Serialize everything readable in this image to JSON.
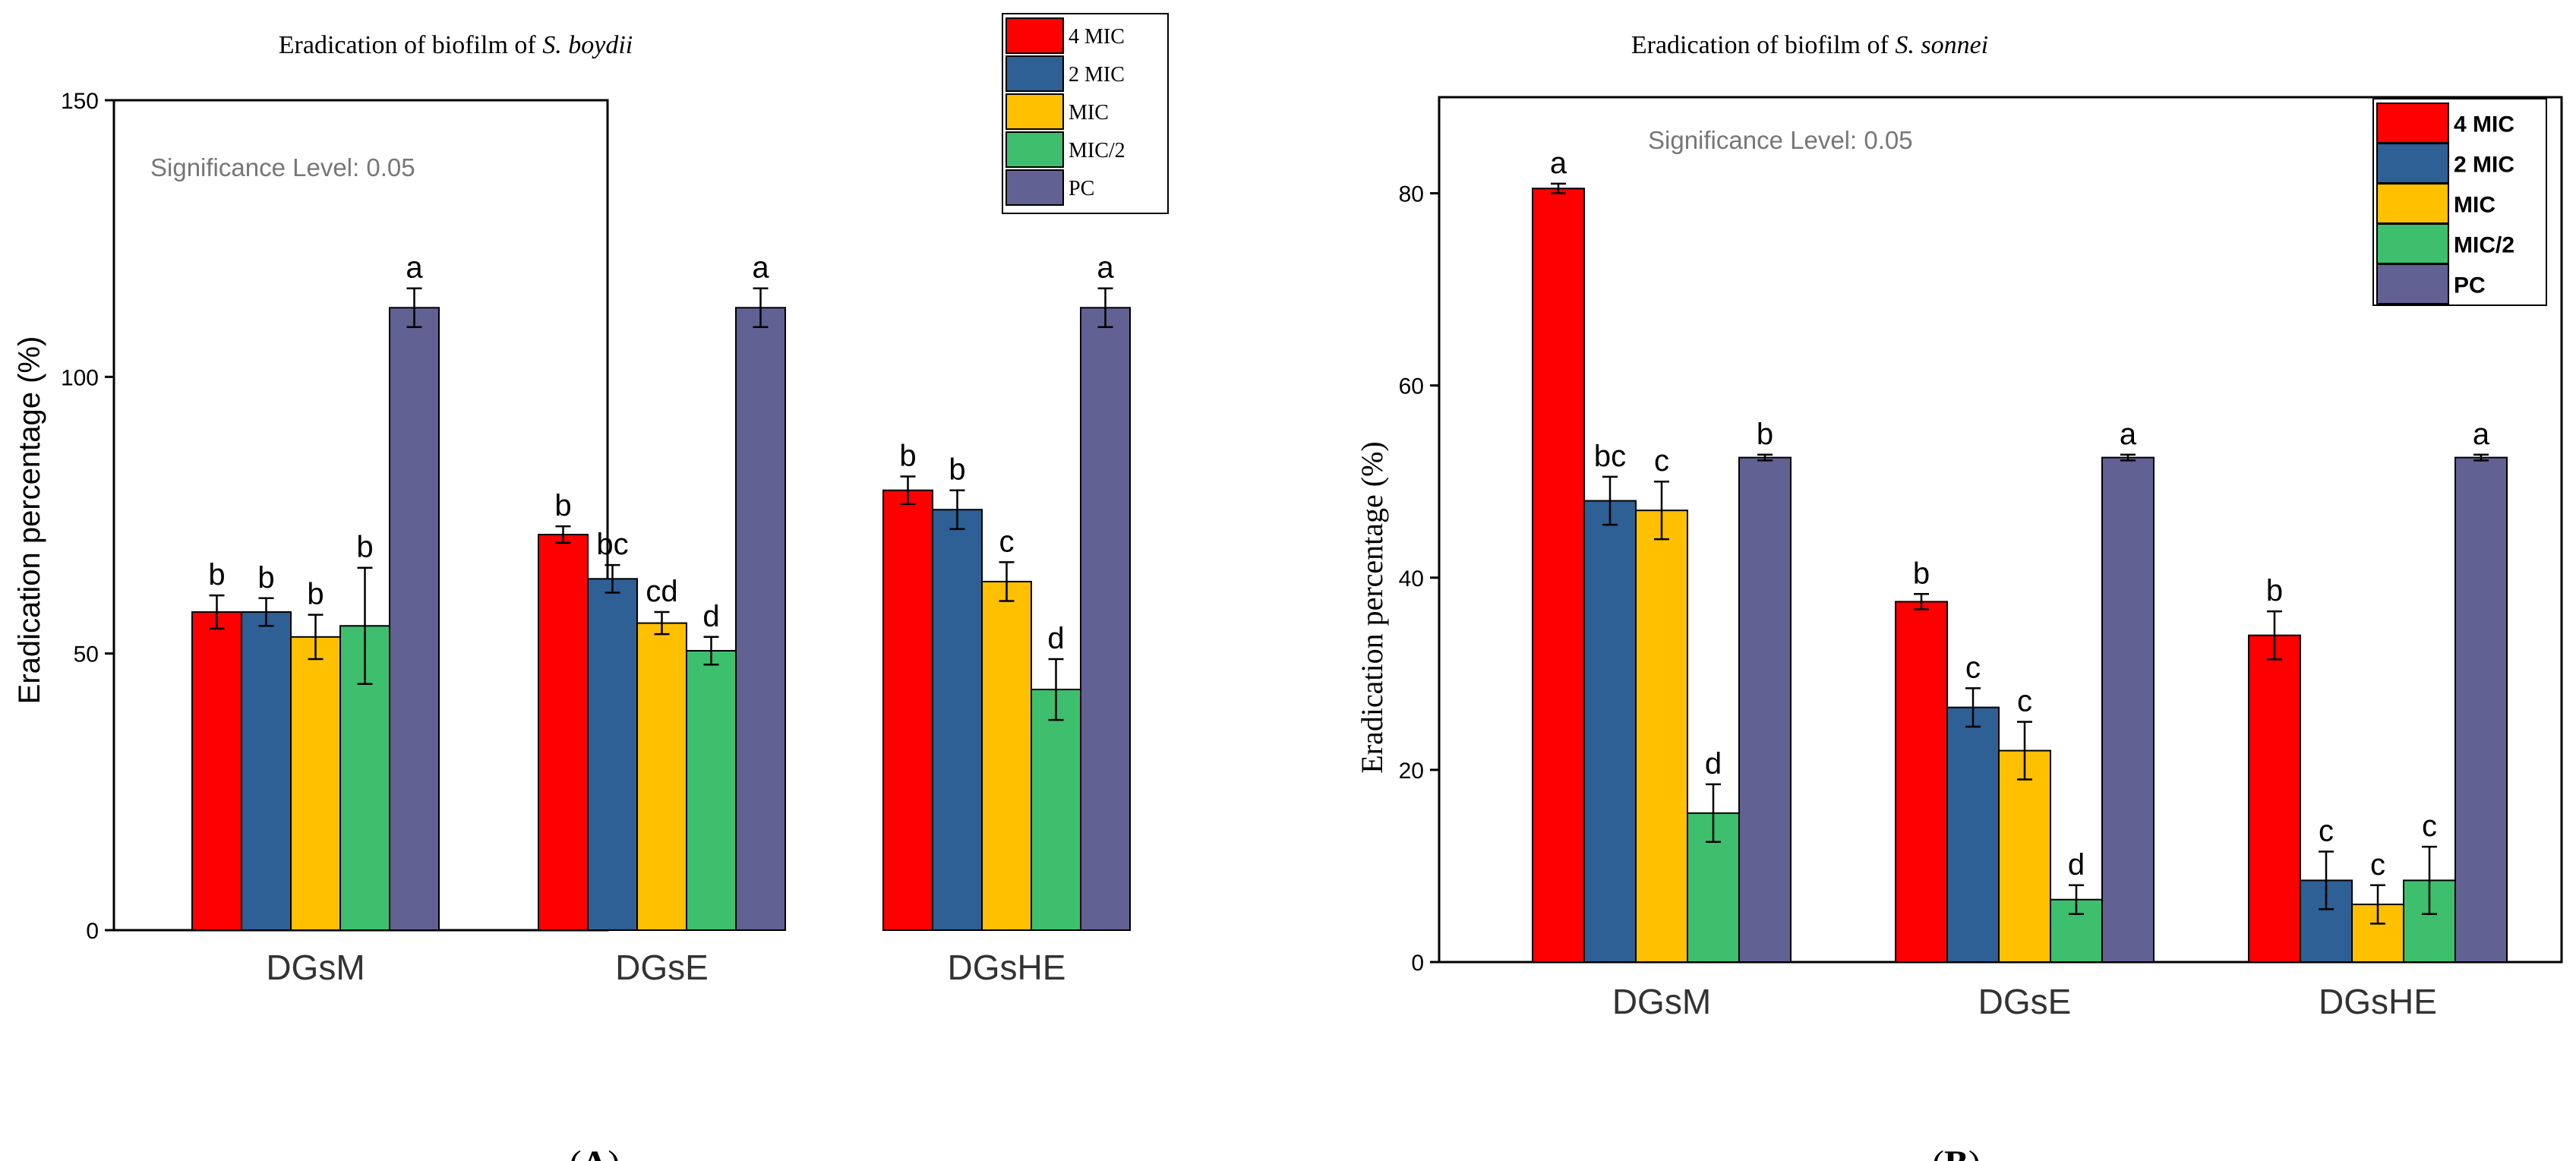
{
  "panels": [
    {
      "panel_label": "A",
      "chart_data": {
        "type": "bar",
        "title_prefix": "Eradication of biofilm of ",
        "title_species": "S. boydii",
        "ylabel": "Eradication percentage (%)",
        "xlabel": "",
        "ylim": [
          0,
          150
        ],
        "yticks": [
          0,
          50,
          100,
          150
        ],
        "categories": [
          "DGsM",
          "DGsE",
          "DGsHE"
        ],
        "annotation": "Significance Level: 0.05",
        "legend_position": "top-right",
        "series": [
          {
            "name": "4 MIC",
            "color": "#ff0000",
            "values": [
              57.5,
              71.5,
              79.5
            ],
            "errors": [
              3,
              1.5,
              2.5
            ],
            "letters": [
              "b",
              "b",
              "b"
            ]
          },
          {
            "name": "2 MIC",
            "color": "#2e5f95",
            "values": [
              57.5,
              63.5,
              76
            ],
            "errors": [
              2.5,
              2.5,
              3.5
            ],
            "letters": [
              "b",
              "bc",
              "b"
            ]
          },
          {
            "name": "MIC",
            "color": "#ffc000",
            "values": [
              53,
              55.5,
              63
            ],
            "errors": [
              4,
              2,
              3.5
            ],
            "letters": [
              "b",
              "cd",
              "c"
            ]
          },
          {
            "name": "MIC/2",
            "color": "#3dbf6e",
            "values": [
              55,
              50.5,
              43.5
            ],
            "errors": [
              10.5,
              2.5,
              5.5
            ],
            "letters": [
              "b",
              "d",
              "d"
            ]
          },
          {
            "name": "PC",
            "color": "#626193",
            "values": [
              112.5,
              112.5,
              112.5
            ],
            "errors": [
              3.5,
              3.5,
              3.5
            ],
            "letters": [
              "a",
              "a",
              "a"
            ]
          }
        ]
      }
    },
    {
      "panel_label": "B",
      "chart_data": {
        "type": "bar",
        "title_prefix": "Eradication of biofilm of ",
        "title_species": "S. sonnei",
        "ylabel": "Eradication percentage (%)",
        "xlabel": "",
        "ylim": [
          0,
          90
        ],
        "yticks": [
          0,
          20,
          40,
          60,
          80
        ],
        "categories": [
          "DGsM",
          "DGsE",
          "DGsHE"
        ],
        "annotation": "Significance Level: 0.05",
        "legend_position": "top-right",
        "series": [
          {
            "name": "4 MIC",
            "color": "#ff0000",
            "values": [
              80.5,
              37.5,
              34
            ],
            "errors": [
              0.5,
              0.8,
              2.5
            ],
            "letters": [
              "a",
              "b",
              "b"
            ]
          },
          {
            "name": "2 MIC",
            "color": "#2e5f95",
            "values": [
              48,
              26.5,
              8.5
            ],
            "errors": [
              2.5,
              2,
              3
            ],
            "letters": [
              "bc",
              "c",
              "c"
            ]
          },
          {
            "name": "MIC",
            "color": "#ffc000",
            "values": [
              47,
              22,
              6
            ],
            "errors": [
              3,
              3,
              2
            ],
            "letters": [
              "c",
              "c",
              "c"
            ]
          },
          {
            "name": "MIC/2",
            "color": "#3dbf6e",
            "values": [
              15.5,
              6.5,
              8.5
            ],
            "errors": [
              3,
              1.5,
              3.5
            ],
            "letters": [
              "d",
              "d",
              "c"
            ]
          },
          {
            "name": "PC",
            "color": "#626193",
            "values": [
              52.5,
              52.5,
              52.5
            ],
            "errors": [
              0.3,
              0.3,
              0.3
            ],
            "letters": [
              "b",
              "a",
              "a"
            ]
          }
        ]
      }
    }
  ]
}
